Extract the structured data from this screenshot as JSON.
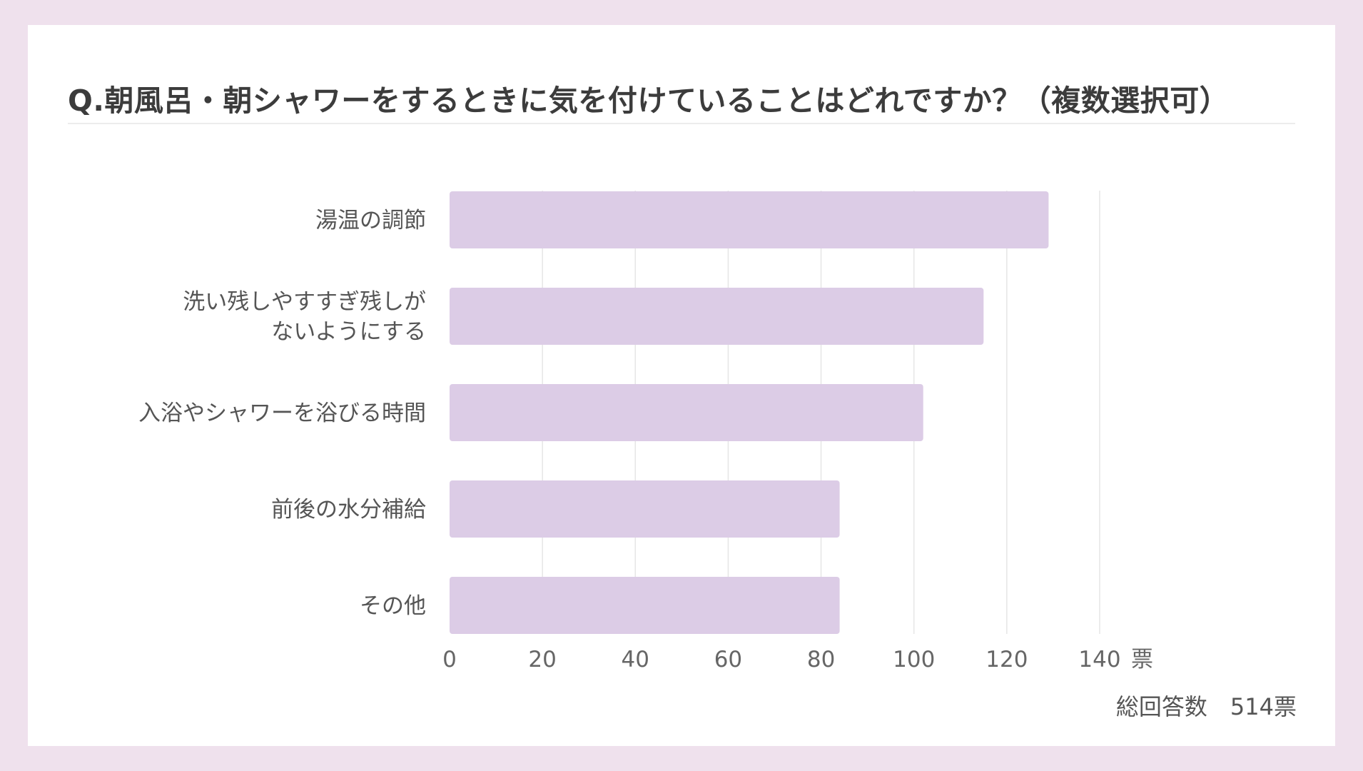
{
  "title": "Q.朝風呂・朝シャワーをするときに気を付けていることはどれですか？（複数選択可）",
  "total": {
    "label": "総回答数",
    "value": "514票"
  },
  "colors": {
    "background": "#efe1ed",
    "card": "#ffffff",
    "bar": "#dccce6",
    "grid": "#e6e6e6",
    "text": "#555555"
  },
  "chart_data": {
    "type": "bar",
    "orientation": "horizontal",
    "categories": [
      [
        "湯温の調節"
      ],
      [
        "洗い残しやすすぎ残しが",
        "ないようにする"
      ],
      [
        "入浴やシャワーを浴びる時間"
      ],
      [
        "前後の水分補給"
      ],
      [
        "その他"
      ]
    ],
    "values": [
      129,
      115,
      102,
      84,
      84
    ],
    "xticks": [
      0,
      20,
      40,
      60,
      80,
      100,
      120,
      140
    ],
    "xlim": [
      0,
      140
    ],
    "xunit": "票",
    "grid": true
  }
}
